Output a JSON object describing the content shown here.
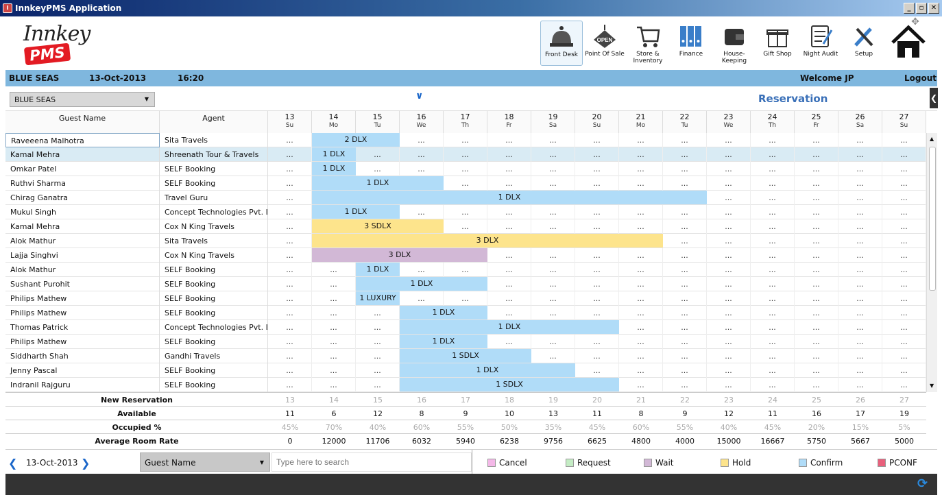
{
  "window": {
    "title": "InnkeyPMS Application",
    "icon": "innkey-app-icon"
  },
  "logo": {
    "script": "Innkey",
    "badge": "PMS"
  },
  "modules": [
    {
      "label": "Front Desk",
      "icon": "reception-bell-icon",
      "active": true
    },
    {
      "label": "Point Of Sale",
      "icon": "open-sign-icon"
    },
    {
      "label": "Store & Inventory",
      "icon": "shopping-cart-icon"
    },
    {
      "label": "Finance",
      "icon": "binders-icon"
    },
    {
      "label": "House-Keeping",
      "icon": "wallet-icon"
    },
    {
      "label": "Gift Shop",
      "icon": "gift-icon"
    },
    {
      "label": "Night Audit",
      "icon": "checklist-icon"
    },
    {
      "label": "Setup",
      "icon": "tools-icon"
    },
    {
      "label": "",
      "icon": "home-icon"
    }
  ],
  "status": {
    "hotel": "BLUE SEAS",
    "date": "13-Oct-2013",
    "time": "16:20",
    "welcome": "Welcome JP",
    "logout": "Logout"
  },
  "hotel_select": {
    "value": "BLUE SEAS"
  },
  "section_title": "Reservation",
  "grid": {
    "guest_header": "Guest Name",
    "agent_header": "Agent",
    "days": [
      {
        "n": "13",
        "w": "Su"
      },
      {
        "n": "14",
        "w": "Mo"
      },
      {
        "n": "15",
        "w": "Tu"
      },
      {
        "n": "16",
        "w": "We"
      },
      {
        "n": "17",
        "w": "Th"
      },
      {
        "n": "18",
        "w": "Fr"
      },
      {
        "n": "19",
        "w": "Sa"
      },
      {
        "n": "20",
        "w": "Su"
      },
      {
        "n": "21",
        "w": "Mo"
      },
      {
        "n": "22",
        "w": "Tu"
      },
      {
        "n": "23",
        "w": "We"
      },
      {
        "n": "24",
        "w": "Th"
      },
      {
        "n": "25",
        "w": "Fr"
      },
      {
        "n": "26",
        "w": "Sa"
      },
      {
        "n": "27",
        "w": "Su"
      }
    ],
    "empty_mark": "...",
    "rows": [
      {
        "guest": "Raveeena Malhotra",
        "agent": "Sita Travels",
        "booking": {
          "start": 1,
          "span": 2,
          "label": "2 DLX",
          "status": "Confirm"
        }
      },
      {
        "guest": "Kamal Mehra",
        "agent": "Shreenath Tour & Travels",
        "booking": {
          "start": 1,
          "span": 1,
          "label": "1 DLX",
          "status": "Confirm"
        }
      },
      {
        "guest": "Omkar Patel",
        "agent": "SELF Booking",
        "booking": {
          "start": 1,
          "span": 1,
          "label": "1 DLX",
          "status": "Confirm"
        }
      },
      {
        "guest": "Ruthvi Sharma",
        "agent": "SELF Booking",
        "booking": {
          "start": 1,
          "span": 3,
          "label": "1 DLX",
          "status": "Confirm"
        }
      },
      {
        "guest": "Chirag Ganatra",
        "agent": "Travel Guru",
        "booking": {
          "start": 1,
          "span": 9,
          "label": "1 DLX",
          "status": "Confirm"
        }
      },
      {
        "guest": "Mukul Singh",
        "agent": "Concept Technologies Pvt. Ltd.",
        "booking": {
          "start": 1,
          "span": 2,
          "label": "1 DLX",
          "status": "Confirm"
        }
      },
      {
        "guest": "Kamal Mehra",
        "agent": "Cox N King Travels",
        "booking": {
          "start": 1,
          "span": 3,
          "label": "3 SDLX",
          "status": "Hold"
        }
      },
      {
        "guest": "Alok Mathur",
        "agent": "Sita Travels",
        "booking": {
          "start": 1,
          "span": 8,
          "label": "3 DLX",
          "status": "Hold"
        }
      },
      {
        "guest": "Lajja Singhvi",
        "agent": "Cox N King Travels",
        "booking": {
          "start": 1,
          "span": 4,
          "label": "3 DLX",
          "status": "Wait"
        }
      },
      {
        "guest": "Alok Mathur",
        "agent": "SELF Booking",
        "booking": {
          "start": 2,
          "span": 1,
          "label": "1 DLX",
          "status": "Confirm"
        }
      },
      {
        "guest": "Sushant Purohit",
        "agent": "SELF Booking",
        "booking": {
          "start": 2,
          "span": 3,
          "label": "1 DLX",
          "status": "Confirm"
        }
      },
      {
        "guest": "Philips Mathew",
        "agent": "SELF Booking",
        "booking": {
          "start": 2,
          "span": 1,
          "label": "1 LUXURY",
          "status": "Confirm"
        }
      },
      {
        "guest": "Philips Mathew",
        "agent": "SELF Booking",
        "booking": {
          "start": 3,
          "span": 2,
          "label": "1 DLX",
          "status": "Confirm"
        }
      },
      {
        "guest": "Thomas Patrick",
        "agent": "Concept Technologies Pvt. Ltd.",
        "booking": {
          "start": 3,
          "span": 5,
          "label": "1 DLX",
          "status": "Confirm"
        }
      },
      {
        "guest": "Philips Mathew",
        "agent": "SELF Booking",
        "booking": {
          "start": 3,
          "span": 2,
          "label": "1 DLX",
          "status": "Confirm"
        }
      },
      {
        "guest": "Siddharth Shah",
        "agent": "Gandhi Travels",
        "booking": {
          "start": 3,
          "span": 3,
          "label": "1 SDLX",
          "status": "Confirm"
        }
      },
      {
        "guest": "Jenny Pascal",
        "agent": "SELF Booking",
        "booking": {
          "start": 3,
          "span": 4,
          "label": "1 DLX",
          "status": "Confirm"
        }
      },
      {
        "guest": "Indranil Rajguru",
        "agent": "SELF Booking",
        "booking": {
          "start": 3,
          "span": 5,
          "label": "1 SDLX",
          "status": "Confirm"
        }
      }
    ],
    "selected_row": 1
  },
  "summary": {
    "new_reservation": {
      "label": "New Reservation",
      "values": [
        "13",
        "14",
        "15",
        "16",
        "17",
        "18",
        "19",
        "20",
        "21",
        "22",
        "23",
        "24",
        "25",
        "26",
        "27"
      ]
    },
    "available": {
      "label": "Available",
      "values": [
        "11",
        "6",
        "12",
        "8",
        "9",
        "10",
        "13",
        "11",
        "8",
        "9",
        "12",
        "11",
        "16",
        "17",
        "19"
      ]
    },
    "occupied": {
      "label": "Occupied %",
      "values": [
        "45%",
        "70%",
        "40%",
        "60%",
        "55%",
        "50%",
        "35%",
        "45%",
        "60%",
        "55%",
        "40%",
        "45%",
        "20%",
        "15%",
        "5%"
      ]
    },
    "avg_rate": {
      "label": "Average Room Rate",
      "values": [
        "0",
        "12000",
        "11706",
        "6032",
        "5940",
        "6238",
        "9756",
        "6625",
        "4800",
        "4000",
        "15000",
        "16667",
        "5750",
        "5667",
        "5000"
      ]
    }
  },
  "bottom": {
    "date": "13-Oct-2013",
    "search_by": "Guest Name",
    "search_placeholder": "Type here to search",
    "legend": [
      {
        "label": "Cancel",
        "color": "#f4b8e8"
      },
      {
        "label": "Request",
        "color": "#c4ecc4"
      },
      {
        "label": "Wait",
        "color": "#d2b8d6"
      },
      {
        "label": "Hold",
        "color": "#fde48c"
      },
      {
        "label": "Confirm",
        "color": "#b0dcf8"
      },
      {
        "label": "PCONF",
        "color": "#e8607c"
      }
    ]
  },
  "colors": {
    "Confirm": "#b0dcf8",
    "Hold": "#fde48c",
    "Wait": "#d2b8d6",
    "status_bar": "#7fb7de",
    "accent": "#1a66c9"
  }
}
